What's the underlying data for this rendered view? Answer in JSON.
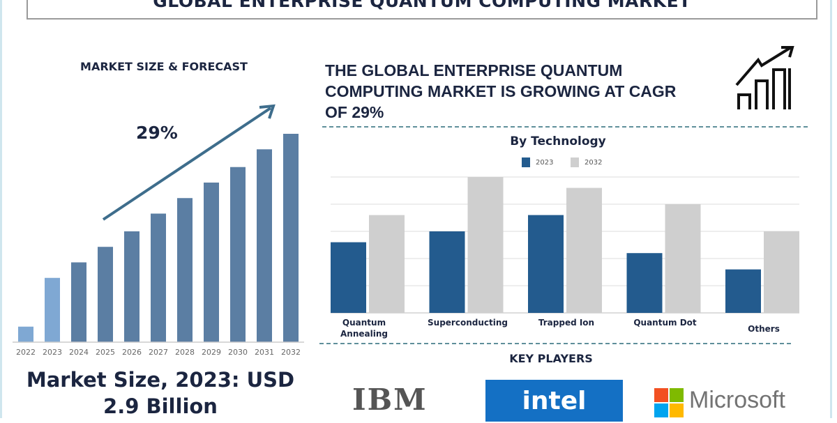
{
  "title": "GLOBAL ENTERPRISE QUANTUM COMPUTING MARKET",
  "headline": "THE GLOBAL ENTERPRISE QUANTUM COMPUTING MARKET IS GROWING AT CAGR OF 29%",
  "market_size_text": "Market Size, 2023: USD 2.9 Billion",
  "key_players": {
    "heading": "KEY PLAYERS",
    "logos": [
      "IBM",
      "intel",
      "Microsoft"
    ]
  },
  "icons": [
    "growth-chart-icon",
    "trend-arrow-icon"
  ],
  "colors": {
    "forecast_bar": "#5b7ea3",
    "forecast_bar_light": "#7fa8d3",
    "series_2023": "#235b8e",
    "series_2032": "#cfcfcf",
    "arrow": "#3e6d8c",
    "text": "#1b2540"
  },
  "chart_data": [
    {
      "type": "bar",
      "title": "MARKET SIZE & FORECAST",
      "annotation": "29%",
      "categories": [
        "2022",
        "2023",
        "2024",
        "2025",
        "2026",
        "2027",
        "2028",
        "2029",
        "2030",
        "2031",
        "2032"
      ],
      "values": [
        0.7,
        2.9,
        3.6,
        4.3,
        5.0,
        5.8,
        6.5,
        7.2,
        7.9,
        8.7,
        9.4
      ],
      "ylim": [
        0,
        9.4
      ],
      "grid": false
    },
    {
      "type": "bar",
      "title": "By Technology",
      "categories": [
        "Quantum Annealing",
        "Superconducting",
        "Trapped Ion",
        "Quantum Dot",
        "Others"
      ],
      "series": [
        {
          "name": "2023",
          "values": [
            2.6,
            3.0,
            3.6,
            2.2,
            1.6
          ]
        },
        {
          "name": "2032",
          "values": [
            3.6,
            5.0,
            4.6,
            4.0,
            3.0
          ]
        }
      ],
      "ylim": [
        0,
        5
      ],
      "grid": true,
      "legend": "top"
    }
  ]
}
